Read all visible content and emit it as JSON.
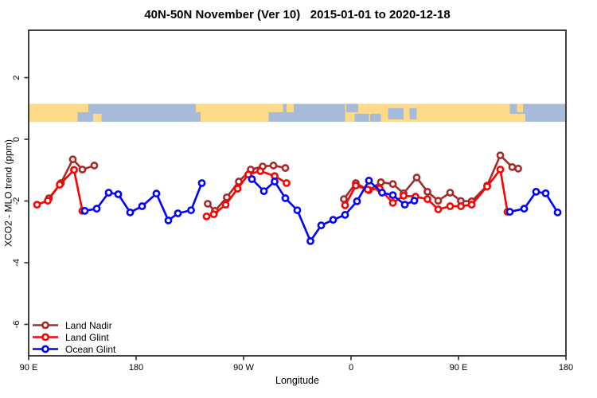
{
  "chart_data": {
    "type": "line",
    "title": "40N-50N November (Ver 10)   2015-01-01 to 2020-12-18",
    "xlabel": "Longitude",
    "ylabel": "XCO2 - MLO trend (ppm)",
    "x_axis": {
      "unit": "degrees longitude, unwrapped eastward from 90E",
      "range": [
        90,
        540
      ],
      "ticks": [
        {
          "value": 90,
          "label": "90 E"
        },
        {
          "value": 180,
          "label": "180"
        },
        {
          "value": 270,
          "label": "90 W"
        },
        {
          "value": 360,
          "label": "0"
        },
        {
          "value": 450,
          "label": "90 E"
        },
        {
          "value": 540,
          "label": "180"
        }
      ]
    },
    "y_axis": {
      "range": [
        -7.0,
        3.5
      ],
      "ticks": [
        {
          "value": 2,
          "label": "2"
        },
        {
          "value": 0,
          "label": "0"
        },
        {
          "value": -2,
          "label": "-2"
        },
        {
          "value": -4,
          "label": "-4"
        },
        {
          "value": -6,
          "label": "-6"
        }
      ],
      "grid": false
    },
    "legend": {
      "position": "bottom-left",
      "entries": [
        {
          "label": "Land Nadir",
          "color": "#A52A2A"
        },
        {
          "label": "Land Glint",
          "color": "#FF0000"
        },
        {
          "label": "Ocean Glint",
          "color": "#0000FF"
        }
      ]
    },
    "band": {
      "description": "world land/ocean strip for 40N-50N drawn across plot between y=0.57 and y=1.15",
      "y_top": 1.15,
      "y_bottom": 0.57,
      "ocean_color": "#A6BAD9",
      "land_color": "#FCDA88",
      "land_segments": [
        {
          "from": 90,
          "to": 131,
          "part": "full"
        },
        {
          "from": 131,
          "to": 140,
          "part": "top"
        },
        {
          "from": 144,
          "to": 151,
          "part": "bottom"
        },
        {
          "from": 230,
          "to": 235,
          "part": "top"
        },
        {
          "from": 234,
          "to": 291,
          "part": "full"
        },
        {
          "from": 291,
          "to": 303,
          "part": "top"
        },
        {
          "from": 306,
          "to": 312,
          "part": "top"
        },
        {
          "from": 355,
          "to": 493,
          "part": "full"
        },
        {
          "from": 493,
          "to": 506,
          "part": "bottom"
        },
        {
          "from": 499,
          "to": 504,
          "part": "top"
        }
      ],
      "water_patches": [
        {
          "from": 356,
          "to": 366,
          "part": "top"
        },
        {
          "from": 363,
          "to": 375,
          "part": "bottom"
        },
        {
          "from": 376,
          "to": 385,
          "part": "bottom"
        },
        {
          "from": 391,
          "to": 404,
          "part": "middle"
        },
        {
          "from": 409,
          "to": 415,
          "part": "middle"
        }
      ]
    },
    "series": [
      {
        "name": "Land Nadir",
        "color": "#A52A2A",
        "marker": "open-circle",
        "segments": [
          [
            [
              107,
              -1.91
            ],
            [
              117,
              -1.42
            ],
            [
              127,
              -0.65
            ],
            [
              135,
              -0.98
            ],
            [
              145,
              -0.85
            ]
          ],
          [
            [
              240,
              -2.09
            ],
            [
              246,
              -2.32
            ],
            [
              256,
              -1.88
            ],
            [
              266,
              -1.37
            ],
            [
              276,
              -0.98
            ],
            [
              286,
              -0.88
            ],
            [
              295,
              -0.85
            ],
            [
              305,
              -0.93
            ]
          ],
          [
            [
              354,
              -1.94
            ],
            [
              364,
              -1.42
            ],
            [
              375,
              -1.65
            ],
            [
              385,
              -1.39
            ],
            [
              395,
              -1.45
            ],
            [
              404,
              -1.75
            ],
            [
              415,
              -1.24
            ],
            [
              424,
              -1.7
            ],
            [
              433,
              -1.99
            ],
            [
              443,
              -1.73
            ],
            [
              452,
              -2.0
            ],
            [
              461,
              -2.01
            ],
            [
              474,
              -1.5
            ],
            [
              485,
              -0.52
            ],
            [
              495,
              -0.9
            ],
            [
              500,
              -0.95
            ]
          ]
        ]
      },
      {
        "name": "Land Glint",
        "color": "#FF0000",
        "marker": "open-circle",
        "segments": [
          [
            [
              97,
              -2.12
            ],
            [
              106,
              -1.99
            ],
            [
              116,
              -1.47
            ],
            [
              128,
              -0.99
            ],
            [
              135,
              -2.32
            ]
          ],
          [
            [
              239,
              -2.5
            ],
            [
              245,
              -2.43
            ],
            [
              255,
              -2.12
            ],
            [
              265,
              -1.6
            ],
            [
              274,
              -1.14
            ],
            [
              284,
              -1.03
            ],
            [
              296,
              -1.19
            ],
            [
              306,
              -1.42
            ]
          ],
          [
            [
              355,
              -2.14
            ],
            [
              364,
              -1.5
            ],
            [
              374,
              -1.63
            ],
            [
              384,
              -1.6
            ],
            [
              395,
              -2.06
            ],
            [
              404,
              -1.83
            ],
            [
              414,
              -1.86
            ],
            [
              424,
              -1.94
            ],
            [
              433,
              -2.27
            ],
            [
              443,
              -2.17
            ],
            [
              452,
              -2.17
            ],
            [
              461,
              -2.12
            ],
            [
              474,
              -1.53
            ],
            [
              485,
              -0.98
            ],
            [
              491,
              -2.35
            ]
          ]
        ]
      },
      {
        "name": "Ocean Glint",
        "color": "#0000FF",
        "marker": "open-circle",
        "segments": [
          [
            [
              137,
              -2.32
            ],
            [
              147,
              -2.25
            ],
            [
              157,
              -1.73
            ],
            [
              165,
              -1.78
            ],
            [
              175,
              -2.37
            ],
            [
              185,
              -2.17
            ],
            [
              197,
              -1.76
            ],
            [
              207,
              -2.63
            ],
            [
              215,
              -2.4
            ],
            [
              226,
              -2.3
            ],
            [
              235,
              -1.42
            ]
          ],
          [
            [
              277,
              -1.29
            ],
            [
              287,
              -1.68
            ],
            [
              296,
              -1.37
            ],
            [
              305,
              -1.91
            ],
            [
              315,
              -2.3
            ],
            [
              326,
              -3.3
            ],
            [
              335,
              -2.79
            ],
            [
              345,
              -2.61
            ],
            [
              355,
              -2.45
            ],
            [
              365,
              -2.01
            ],
            [
              375,
              -1.34
            ],
            [
              386,
              -1.73
            ],
            [
              395,
              -1.81
            ],
            [
              405,
              -2.12
            ],
            [
              413,
              -1.99
            ]
          ],
          [
            [
              493,
              -2.35
            ],
            [
              505,
              -2.25
            ],
            [
              515,
              -1.7
            ],
            [
              523,
              -1.75
            ],
            [
              533,
              -2.37
            ]
          ]
        ]
      }
    ]
  }
}
